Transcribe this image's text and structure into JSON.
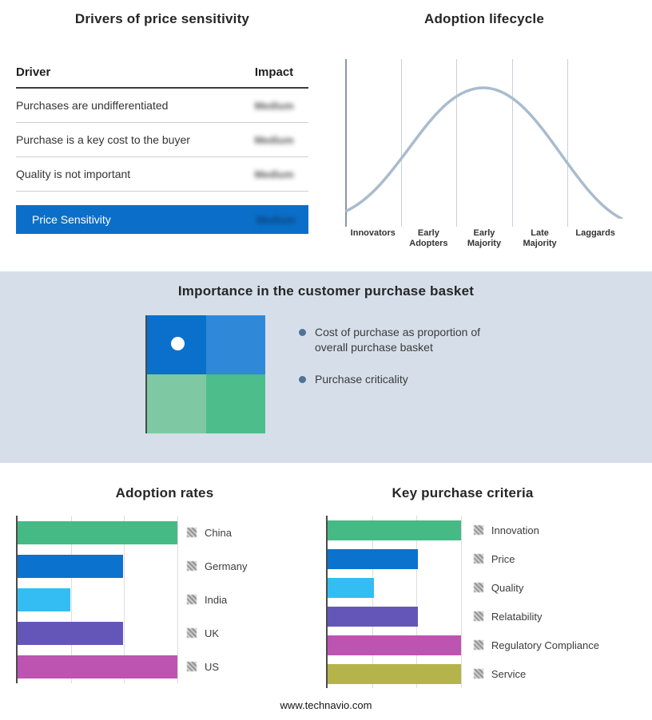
{
  "drivers_panel": {
    "title": "Drivers of price sensitivity",
    "col_driver": "Driver",
    "col_impact": "Impact",
    "rows": [
      {
        "driver": "Purchases are undifferentiated",
        "impact": "Medium"
      },
      {
        "driver": "Purchase is a key cost to the buyer",
        "impact": "Medium"
      },
      {
        "driver": "Quality is not important",
        "impact": "Medium"
      }
    ],
    "summary": {
      "label": "Price Sensitivity",
      "impact": "Medium"
    },
    "accent_color": "#0b6fc9"
  },
  "lifecycle_panel": {
    "title": "Adoption lifecycle",
    "stages": [
      "Innovators",
      "Early Adopters",
      "Early Majority",
      "Late Majority",
      "Laggards"
    ],
    "curve_color": "#a9bcce"
  },
  "basket_panel": {
    "title": "Importance in the customer purchase basket",
    "bullets": [
      "Cost of purchase as proportion of overall purchase basket",
      "Purchase criticality"
    ],
    "quadrant_colors": [
      "#0a70cc",
      "#2f88d8",
      "#7ec9a4",
      "#4dbd8b"
    ],
    "background": "#d6dfe9"
  },
  "chart_data": [
    {
      "type": "bar",
      "orientation": "horizontal",
      "title": "Adoption rates",
      "categories": [
        "China",
        "Germany",
        "India",
        "UK",
        "US"
      ],
      "values": [
        100,
        66,
        33,
        66,
        100
      ],
      "colors": [
        "#45ba85",
        "#0b72ce",
        "#33bdf2",
        "#6456b8",
        "#bd54b2"
      ],
      "xlim": [
        0,
        100
      ],
      "grid": true,
      "legend_position": "right"
    },
    {
      "type": "bar",
      "orientation": "horizontal",
      "title": "Key purchase criteria",
      "categories": [
        "Innovation",
        "Price",
        "Quality",
        "Relatability",
        "Regulatory Compliance",
        "Service"
      ],
      "values": [
        100,
        68,
        35,
        68,
        100,
        100
      ],
      "colors": [
        "#45ba85",
        "#0b72ce",
        "#33bdf2",
        "#6456b8",
        "#bd54b2",
        "#b5b44a"
      ],
      "xlim": [
        0,
        100
      ],
      "grid": true,
      "legend_position": "right"
    }
  ],
  "footer": {
    "url": "www.technavio.com"
  }
}
